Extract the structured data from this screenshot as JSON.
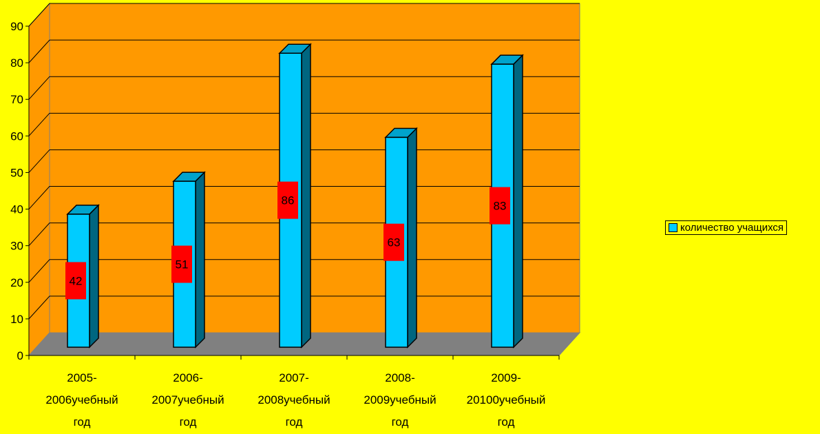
{
  "chart_data": {
    "type": "bar",
    "categories": [
      [
        "2005-",
        "2006учебный",
        "год"
      ],
      [
        "2006-",
        "2007учебный",
        "год"
      ],
      [
        "2007-",
        "2008учебный",
        "год"
      ],
      [
        "2008-",
        "2009учебный",
        "год"
      ],
      [
        "2009-",
        "20100учебный",
        "год"
      ]
    ],
    "series": [
      {
        "name": "количество учащихся",
        "values": [
          42,
          51,
          86,
          63,
          83
        ]
      }
    ],
    "ylim": [
      0,
      90
    ],
    "yticks": [
      0,
      10,
      20,
      30,
      40,
      50,
      60,
      70,
      80,
      90
    ],
    "grid": true,
    "legend_position": "right",
    "colors": {
      "background": "#FFFF00",
      "plot_wall": "#FF9900",
      "floor": "#808080",
      "bar_front": "#00CCFF",
      "bar_side": "#006680",
      "bar_top": "#00A3CC",
      "data_label_bg": "#FF0000"
    }
  }
}
